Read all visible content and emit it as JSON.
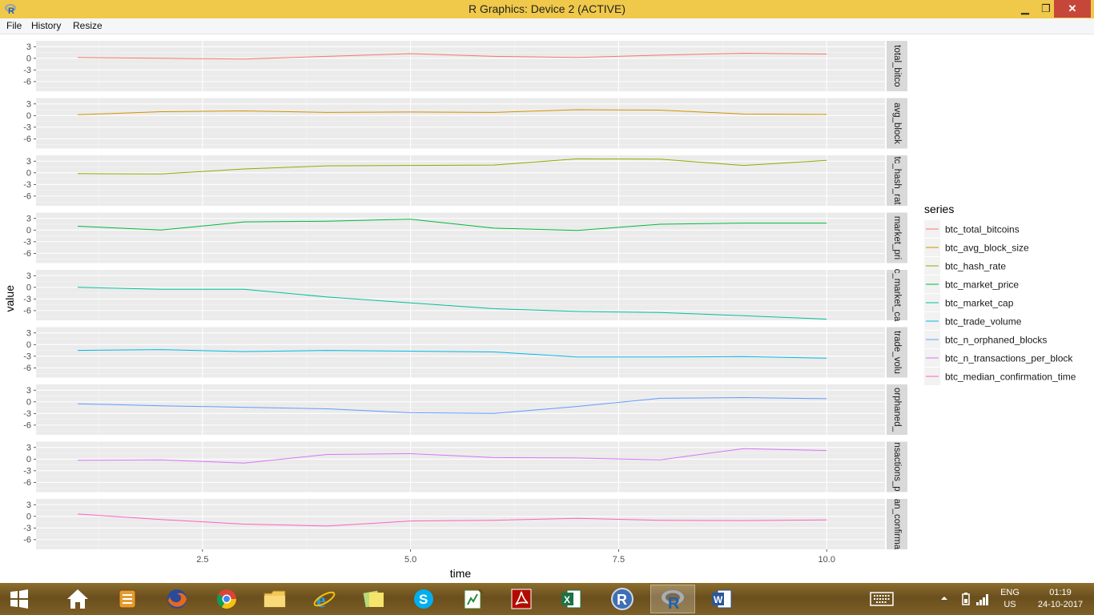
{
  "window": {
    "title": "R Graphics: Device 2 (ACTIVE)",
    "minimize_glyph": "▁",
    "maximize_glyph": "❐",
    "close_glyph": "✕"
  },
  "menu": {
    "items": [
      "File",
      "History",
      "Resize"
    ]
  },
  "chart_data": {
    "type": "line",
    "xlabel": "time",
    "ylabel": "value",
    "xlim": [
      0.5,
      10.7
    ],
    "ylim": [
      -8.5,
      4.5
    ],
    "x_ticks": [
      2.5,
      5.0,
      7.5,
      10.0
    ],
    "x_tick_labels": [
      "2.5",
      "5.0",
      "7.5",
      "10.0"
    ],
    "y_ticks": [
      3,
      0,
      -3,
      -6
    ],
    "y_tick_labels": [
      "3",
      "0",
      "-3",
      "-6"
    ],
    "grid": true,
    "legend_title": "series",
    "legend_position": "right",
    "x": [
      1,
      2,
      3,
      4,
      5,
      6,
      7,
      8,
      9,
      10
    ],
    "series": [
      {
        "name": "btc_total_bitcoins",
        "strip": "total_bitco",
        "color": "#F8766D",
        "values": [
          0.2,
          0.0,
          -0.2,
          0.5,
          1.2,
          0.5,
          0.2,
          0.8,
          1.3,
          1.1
        ]
      },
      {
        "name": "btc_avg_block_size",
        "strip": "avg_block",
        "color": "#D39200",
        "values": [
          0.2,
          1.0,
          1.2,
          0.8,
          0.9,
          0.8,
          1.5,
          1.4,
          0.4,
          0.3
        ]
      },
      {
        "name": "btc_hash_rate",
        "strip": "tc_hash_rat",
        "color": "#93AA00",
        "values": [
          -0.2,
          -0.3,
          1.0,
          1.8,
          1.9,
          2.0,
          3.6,
          3.5,
          1.9,
          3.2
        ]
      },
      {
        "name": "btc_market_price",
        "strip": "market_pri",
        "color": "#00BA38",
        "values": [
          1.0,
          0.0,
          2.1,
          2.3,
          2.8,
          0.5,
          -0.1,
          1.5,
          1.8,
          1.8
        ]
      },
      {
        "name": "btc_market_cap",
        "strip": "c_market_ca",
        "color": "#00C19F",
        "values": [
          0.0,
          -0.5,
          -0.5,
          -2.5,
          -4.0,
          -5.5,
          -6.2,
          -6.5,
          -7.3,
          -8.2
        ]
      },
      {
        "name": "btc_trade_volume",
        "strip": "trade_volu",
        "color": "#00B9E3",
        "values": [
          -1.5,
          -1.3,
          -1.8,
          -1.5,
          -1.7,
          -1.9,
          -3.2,
          -3.2,
          -3.1,
          -3.5
        ]
      },
      {
        "name": "btc_n_orphaned_blocks",
        "strip": "orphaned_",
        "color": "#619CFF",
        "values": [
          -0.5,
          -1.0,
          -1.4,
          -1.8,
          -2.8,
          -3.0,
          -1.2,
          0.9,
          1.1,
          0.8
        ]
      },
      {
        "name": "btc_n_transactions_per_block",
        "strip": "nsactions_p",
        "color": "#DB72FB",
        "values": [
          -0.3,
          -0.2,
          -1.0,
          1.2,
          1.4,
          0.4,
          0.3,
          -0.2,
          2.7,
          2.2
        ]
      },
      {
        "name": "btc_median_confirmation_time",
        "strip": "an_confirma",
        "color": "#FF61C3",
        "values": [
          0.6,
          -0.8,
          -2.0,
          -2.5,
          -1.2,
          -1.0,
          -0.5,
          -1.0,
          -1.1,
          -0.9
        ]
      }
    ]
  },
  "taskbar": {
    "apps": [
      "start",
      "home",
      "notes",
      "firefox",
      "chrome",
      "file-explorer",
      "internet-explorer",
      "sticky-notes",
      "skype",
      "spreadsheet-tool",
      "acrobat",
      "excel",
      "r-app",
      "r-gui",
      "word"
    ],
    "active_app": "r-gui",
    "lang_top": "ENG",
    "lang_bottom": "US",
    "time": "01:19",
    "date": "24-10-2017"
  }
}
